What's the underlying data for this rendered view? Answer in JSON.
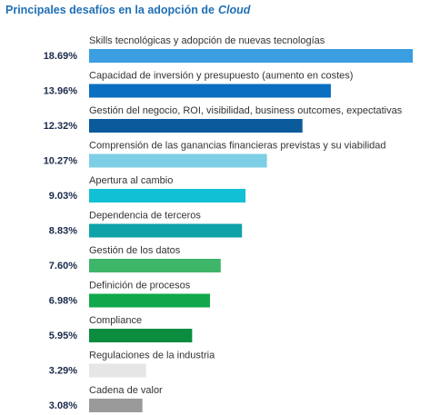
{
  "chart_data": {
    "type": "bar",
    "orientation": "horizontal",
    "title": [
      "Principales desafíos en la adopción de",
      "Cloud"
    ],
    "categories": [
      "Skills tecnológicas y adopción de nuevas tecnologías",
      "Capacidad de inversión y presupuesto (aumento en costes)",
      "Gestión del negocio, ROI, visibilidad, business outcomes, expectativas",
      "Comprensión de las ganancias financieras previstas y su viabilidad",
      "Apertura al cambio",
      "Dependencia de terceros",
      "Gestión de los datos",
      "Definición de procesos",
      "Compliance",
      "Regulaciones de la industria",
      "Cadena de valor"
    ],
    "values": [
      18.69,
      13.96,
      12.32,
      10.27,
      9.03,
      8.83,
      7.6,
      6.98,
      5.95,
      3.29,
      3.08
    ],
    "value_labels": [
      "18.69%",
      "13.96%",
      "12.32%",
      "10.27%",
      "9.03%",
      "8.83%",
      "7.60%",
      "6.98%",
      "5.95%",
      "3.29%",
      "3.08%"
    ],
    "colors": [
      "#3a9ee0",
      "#0a6fc0",
      "#0a5a9c",
      "#7ecfe6",
      "#12c0d6",
      "#0ea3a8",
      "#3fb56a",
      "#10a84a",
      "#0b8c3e",
      "#e6e6e6",
      "#9a9a9a"
    ],
    "xlim": [
      0,
      20
    ]
  }
}
